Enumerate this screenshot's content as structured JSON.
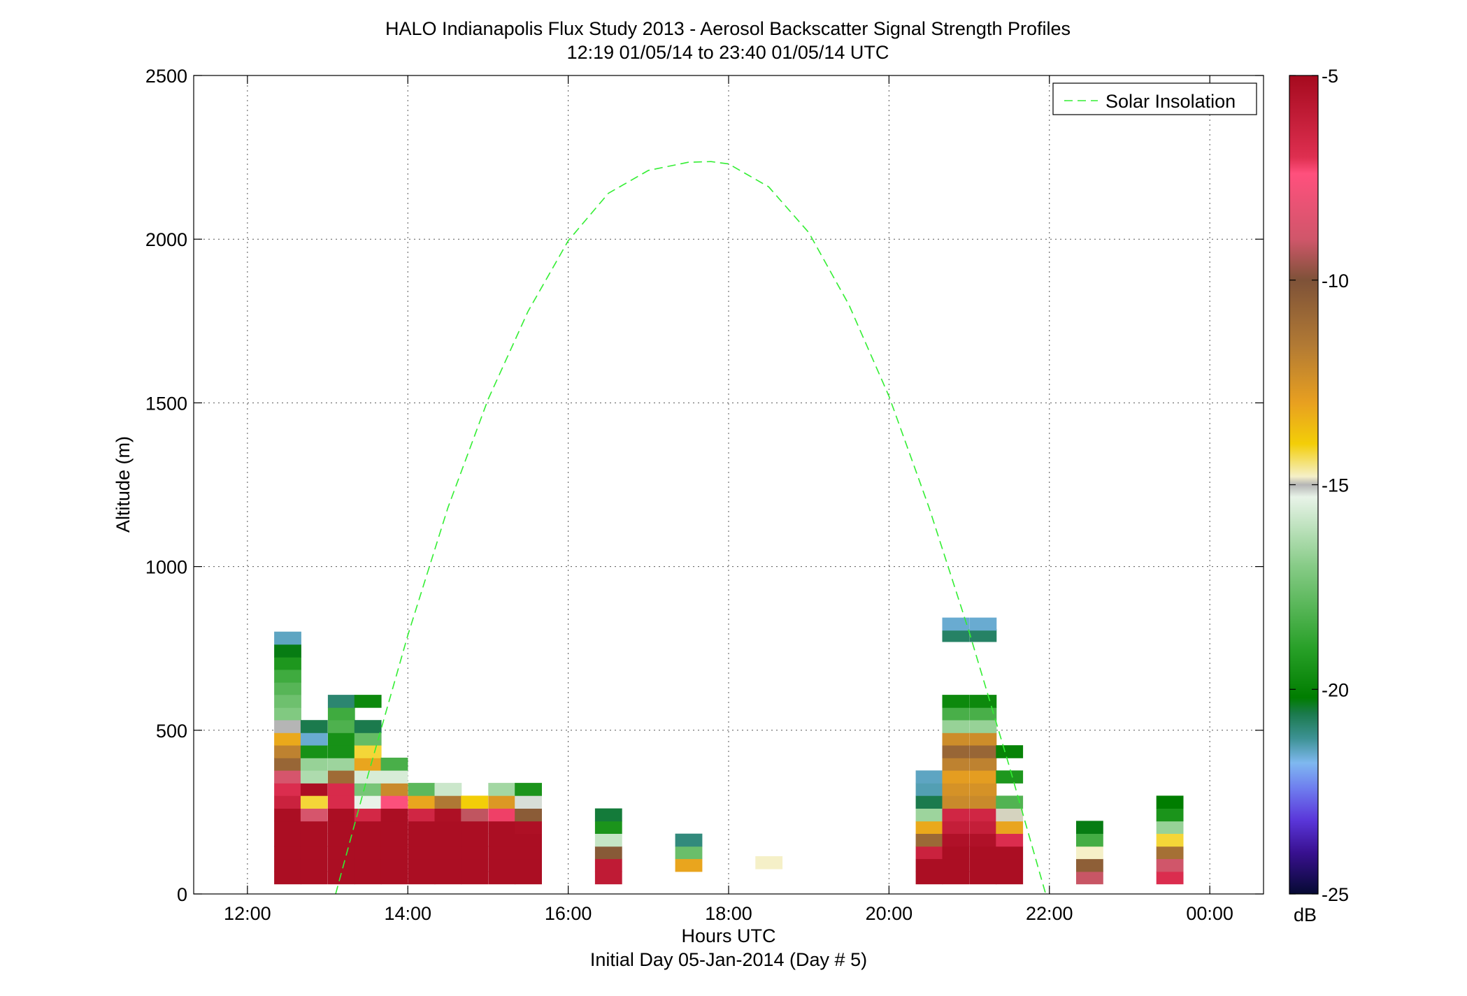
{
  "chart_data": {
    "type": "heatmap",
    "title": "HALO Indianapolis Flux Study 2013 - Aerosol Backscatter Signal Strength Profiles",
    "subtitle": "12:19 01/05/14 to 23:40 01/05/14  UTC",
    "xlabel": "Hours UTC",
    "xlabel2": "Initial Day 05-Jan-2014 (Day # 5)",
    "ylabel": "Altitude (m)",
    "xlim": [
      11.33,
      24.67
    ],
    "ylim": [
      0,
      2500
    ],
    "x_ticks": [
      12,
      14,
      16,
      18,
      20,
      22,
      24
    ],
    "x_tick_labels": [
      "12:00",
      "14:00",
      "16:00",
      "18:00",
      "20:00",
      "22:00",
      "00:00"
    ],
    "y_ticks": [
      0,
      500,
      1000,
      1500,
      2000,
      2500
    ],
    "y_tick_labels": [
      "0",
      "500",
      "1000",
      "1500",
      "2000",
      "2500"
    ],
    "grid": true,
    "colorbar": {
      "label": "dB",
      "range": [
        -25,
        -5
      ],
      "ticks": [
        -5,
        -10,
        -15,
        -20,
        -25
      ],
      "tick_labels": [
        "-5",
        "-10",
        "-15",
        "-20",
        "-25"
      ]
    },
    "legend": {
      "position": "top-right",
      "entries": [
        "Solar Insolation"
      ]
    },
    "solar_insolation": {
      "color": "#33ee33",
      "x": [
        13.1,
        13.5,
        14.0,
        14.5,
        15.0,
        15.5,
        16.0,
        16.5,
        17.0,
        17.5,
        17.78,
        18.0,
        18.5,
        19.0,
        19.5,
        20.0,
        20.5,
        21.0,
        21.5,
        22.0,
        22.45
      ],
      "y": [
        0,
        360,
        790,
        1180,
        1510,
        1780,
        1995,
        2140,
        2210,
        2235,
        2237,
        2230,
        2160,
        2020,
        1800,
        1520,
        1180,
        800,
        390,
        -40,
        -10
      ]
    },
    "bin_width_hours": 0.333,
    "bin_height_m": 38.5,
    "profiles": [
      {
        "time": 12.5,
        "cells": [
          [
            50,
            -5.2
          ],
          [
            88,
            -5.2
          ],
          [
            127,
            -5.2
          ],
          [
            165,
            -5.2
          ],
          [
            204,
            -5.2
          ],
          [
            242,
            -5.2
          ],
          [
            281,
            -6.3
          ],
          [
            320,
            -6.9
          ],
          [
            358,
            -8.8
          ],
          [
            397,
            -10.8
          ],
          [
            435,
            -11.9
          ],
          [
            474,
            -13.2
          ],
          [
            512,
            -15.0
          ],
          [
            551,
            -17.1
          ],
          [
            589,
            -17.5
          ],
          [
            628,
            -18.0
          ],
          [
            666,
            -18.5
          ],
          [
            705,
            -19.3
          ],
          [
            743,
            -20.3
          ],
          [
            782,
            -21.5
          ]
        ]
      },
      {
        "time": 12.83,
        "cells": [
          [
            50,
            -5.2
          ],
          [
            88,
            -5.2
          ],
          [
            127,
            -5.2
          ],
          [
            165,
            -5.2
          ],
          [
            204,
            -5.2
          ],
          [
            242,
            -8.8
          ],
          [
            281,
            -14.2
          ],
          [
            320,
            -5.2
          ],
          [
            358,
            -16.3
          ],
          [
            397,
            -16.7
          ],
          [
            435,
            -19.5
          ],
          [
            474,
            -21.6
          ],
          [
            512,
            -20.6
          ]
        ]
      },
      {
        "time": 13.17,
        "cells": [
          [
            50,
            -5.2
          ],
          [
            88,
            -5.2
          ],
          [
            127,
            -5.2
          ],
          [
            165,
            -5.2
          ],
          [
            204,
            -5.2
          ],
          [
            242,
            -5.2
          ],
          [
            281,
            -6.8
          ],
          [
            320,
            -6.8
          ],
          [
            358,
            -11.0
          ],
          [
            397,
            -16.6
          ],
          [
            435,
            -19.5
          ],
          [
            474,
            -19.5
          ],
          [
            512,
            -18.2
          ],
          [
            551,
            -18.5
          ],
          [
            589,
            -20.9
          ]
        ]
      },
      {
        "time": 13.5,
        "cells": [
          [
            50,
            -5.2
          ],
          [
            88,
            -5.2
          ],
          [
            127,
            -5.2
          ],
          [
            165,
            -5.2
          ],
          [
            204,
            -5.2
          ],
          [
            242,
            -6.6
          ],
          [
            281,
            -15.3
          ],
          [
            320,
            -17.3
          ],
          [
            358,
            -15.6
          ],
          [
            397,
            -13.1
          ],
          [
            435,
            -14.2
          ],
          [
            474,
            -17.7
          ],
          [
            512,
            -20.6
          ],
          [
            589,
            -19.8
          ]
        ]
      },
      {
        "time": 13.83,
        "cells": [
          [
            50,
            -5.2
          ],
          [
            88,
            -5.2
          ],
          [
            127,
            -5.2
          ],
          [
            165,
            -5.2
          ],
          [
            204,
            -5.2
          ],
          [
            242,
            -5.2
          ],
          [
            281,
            -7.5
          ],
          [
            320,
            -12.2
          ],
          [
            358,
            -15.6
          ],
          [
            397,
            -18.3
          ]
        ]
      },
      {
        "time": 14.17,
        "cells": [
          [
            50,
            -5.2
          ],
          [
            88,
            -5.2
          ],
          [
            127,
            -5.2
          ],
          [
            165,
            -5.2
          ],
          [
            204,
            -5.2
          ],
          [
            242,
            -6.5
          ],
          [
            281,
            -13.1
          ],
          [
            320,
            -17.9
          ]
        ]
      },
      {
        "time": 14.5,
        "cells": [
          [
            50,
            -5.2
          ],
          [
            88,
            -5.2
          ],
          [
            127,
            -5.2
          ],
          [
            165,
            -5.2
          ],
          [
            204,
            -5.2
          ],
          [
            242,
            -5.3
          ],
          [
            281,
            -11.5
          ],
          [
            320,
            -15.8
          ]
        ]
      },
      {
        "time": 14.83,
        "cells": [
          [
            50,
            -5.2
          ],
          [
            88,
            -5.2
          ],
          [
            127,
            -5.2
          ],
          [
            165,
            -5.2
          ],
          [
            204,
            -5.2
          ],
          [
            242,
            -9.2
          ],
          [
            281,
            -14.0
          ]
        ]
      },
      {
        "time": 15.17,
        "cells": [
          [
            50,
            -5.2
          ],
          [
            88,
            -5.2
          ],
          [
            127,
            -5.2
          ],
          [
            165,
            -5.2
          ],
          [
            204,
            -5.2
          ],
          [
            242,
            -7.2
          ],
          [
            281,
            -12.7
          ],
          [
            320,
            -16.5
          ]
        ]
      },
      {
        "time": 15.5,
        "cells": [
          [
            50,
            -5.2
          ],
          [
            88,
            -5.2
          ],
          [
            127,
            -5.2
          ],
          [
            165,
            -5.2
          ],
          [
            204,
            -5.3
          ],
          [
            242,
            -10.4
          ],
          [
            281,
            -15.2
          ],
          [
            320,
            -19.4
          ]
        ]
      },
      {
        "time": 16.5,
        "cells": [
          [
            50,
            -5.9
          ],
          [
            88,
            -5.9
          ],
          [
            127,
            -10.3
          ],
          [
            165,
            -15.9
          ],
          [
            204,
            -19.4
          ],
          [
            242,
            -20.5
          ]
        ]
      },
      {
        "time": 17.5,
        "cells": [
          [
            88,
            -13.1
          ],
          [
            127,
            -17.6
          ],
          [
            165,
            -21.0
          ]
        ]
      },
      {
        "time": 18.5,
        "cells": [
          [
            96,
            -14.8
          ]
        ]
      },
      {
        "time": 20.5,
        "cells": [
          [
            50,
            -5.2
          ],
          [
            88,
            -5.2
          ],
          [
            127,
            -6.3
          ],
          [
            165,
            -10.9
          ],
          [
            204,
            -13.2
          ],
          [
            242,
            -16.6
          ],
          [
            281,
            -20.6
          ],
          [
            320,
            -21.4
          ],
          [
            358,
            -21.5
          ]
        ]
      },
      {
        "time": 20.83,
        "cells": [
          [
            50,
            -5.2
          ],
          [
            88,
            -5.2
          ],
          [
            127,
            -5.2
          ],
          [
            165,
            -5.4
          ],
          [
            204,
            -6.1
          ],
          [
            242,
            -6.5
          ],
          [
            281,
            -12.2
          ],
          [
            320,
            -12.5
          ],
          [
            358,
            -12.9
          ],
          [
            397,
            -11.9
          ],
          [
            435,
            -10.8
          ],
          [
            474,
            -12.3
          ],
          [
            512,
            -16.7
          ],
          [
            551,
            -18.3
          ],
          [
            589,
            -19.8
          ],
          [
            790,
            -20.8
          ],
          [
            825,
            -21.6
          ]
        ]
      },
      {
        "time": 21.17,
        "cells": [
          [
            50,
            -5.2
          ],
          [
            88,
            -5.2
          ],
          [
            127,
            -5.2
          ],
          [
            165,
            -5.4
          ],
          [
            204,
            -6.1
          ],
          [
            242,
            -6.5
          ],
          [
            281,
            -12.2
          ],
          [
            320,
            -12.5
          ],
          [
            358,
            -12.9
          ],
          [
            397,
            -11.9
          ],
          [
            435,
            -10.8
          ],
          [
            474,
            -12.3
          ],
          [
            512,
            -16.7
          ],
          [
            551,
            -18.3
          ],
          [
            589,
            -19.8
          ],
          [
            790,
            -20.8
          ],
          [
            825,
            -21.6
          ]
        ]
      },
      {
        "time": 21.5,
        "cells": [
          [
            50,
            -5.2
          ],
          [
            88,
            -5.2
          ],
          [
            127,
            -5.2
          ],
          [
            165,
            -6.9
          ],
          [
            204,
            -13.1
          ],
          [
            242,
            -14.9
          ],
          [
            281,
            -18.1
          ],
          [
            358,
            -19.3
          ],
          [
            435,
            -20.0
          ]
        ]
      },
      {
        "time": 22.5,
        "cells": [
          [
            50,
            -9.1
          ],
          [
            88,
            -10.5
          ],
          [
            127,
            -14.8
          ],
          [
            165,
            -18.4
          ],
          [
            204,
            -20.3
          ]
        ]
      },
      {
        "time": 23.5,
        "cells": [
          [
            50,
            -6.9
          ],
          [
            88,
            -9.0
          ],
          [
            127,
            -11.2
          ],
          [
            165,
            -14.2
          ],
          [
            204,
            -16.7
          ],
          [
            242,
            -19.4
          ],
          [
            281,
            -20.2
          ]
        ]
      }
    ]
  }
}
